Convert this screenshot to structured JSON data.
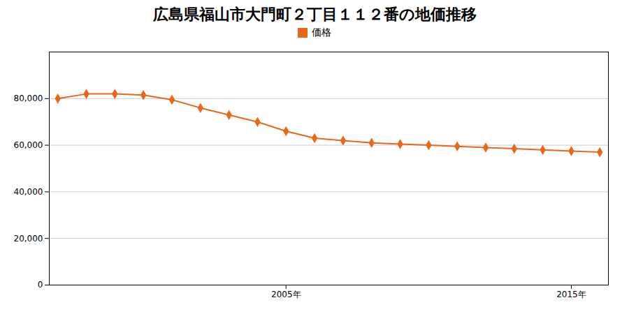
{
  "chart_data": {
    "type": "line",
    "title": "広島県福山市大門町２丁目１１２番の地価推移",
    "x": [
      1997,
      1998,
      1999,
      2000,
      2001,
      2002,
      2003,
      2004,
      2005,
      2006,
      2007,
      2008,
      2009,
      2010,
      2011,
      2012,
      2013,
      2014,
      2015,
      2016
    ],
    "series": [
      {
        "name": "価格",
        "color": "#e8671b",
        "marker": "diamond",
        "line_style": "solid",
        "values": [
          80000,
          82000,
          82000,
          81500,
          79500,
          76000,
          73000,
          70000,
          66000,
          63000,
          62000,
          61000,
          60500,
          60000,
          59500,
          59000,
          58500,
          58000,
          57500,
          57000
        ]
      }
    ],
    "xlim": [
      1996.7,
      2016.3
    ],
    "xticks": [
      {
        "value": 2005,
        "label": "2005年"
      },
      {
        "value": 2015,
        "label": "2015年"
      }
    ],
    "ylim": [
      0,
      100000
    ],
    "yticks": [
      0,
      {
        "value": 20000,
        "label": "20,000"
      },
      {
        "value": 40000,
        "label": "40,000"
      },
      {
        "value": 60000,
        "label": "60,000"
      },
      {
        "value": 80000,
        "label": "80,000"
      }
    ],
    "grid": true,
    "legend": "top"
  }
}
